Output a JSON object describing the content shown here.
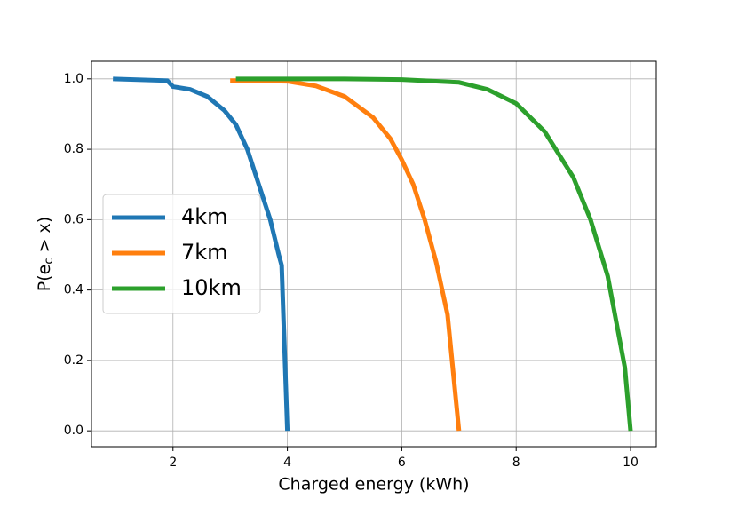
{
  "chart_data": {
    "type": "line",
    "xlabel": "Charged energy (kWh)",
    "ylabel_parts": [
      "P(e",
      "c",
      " > x)"
    ],
    "xlim": [
      0.575,
      10.45
    ],
    "ylim": [
      -0.045,
      1.05
    ],
    "xticks": [
      2,
      4,
      6,
      8,
      10
    ],
    "yticks": [
      {
        "value": 0,
        "label": "0.0"
      },
      {
        "value": 0.2,
        "label": "0.2"
      },
      {
        "value": 0.4,
        "label": "0.4"
      },
      {
        "value": 0.6,
        "label": "0.6"
      },
      {
        "value": 0.8,
        "label": "0.8"
      },
      {
        "value": 1,
        "label": "1.0"
      }
    ],
    "grid": true,
    "legend": "center left",
    "series": [
      {
        "name": "4km",
        "color": "#1f77b4",
        "x": [
          0.95,
          1.9,
          2.0,
          2.3,
          2.6,
          2.9,
          3.1,
          3.3,
          3.5,
          3.7,
          3.85,
          3.9,
          4.0
        ],
        "values": [
          1.0,
          0.995,
          0.978,
          0.97,
          0.95,
          0.91,
          0.87,
          0.8,
          0.7,
          0.6,
          0.5,
          0.47,
          0
        ]
      },
      {
        "name": "7km",
        "color": "#ff7f0e",
        "x": [
          3.0,
          3.2,
          4.0,
          4.5,
          5.0,
          5.5,
          5.8,
          6.0,
          6.2,
          6.4,
          6.6,
          6.8,
          7.0
        ],
        "values": [
          0.995,
          0.995,
          0.993,
          0.98,
          0.95,
          0.89,
          0.83,
          0.77,
          0.7,
          0.6,
          0.48,
          0.33,
          0
        ]
      },
      {
        "name": "10km",
        "color": "#2ca02c",
        "x": [
          3.1,
          5,
          6,
          7,
          7.5,
          8,
          8.5,
          9,
          9.3,
          9.6,
          9.9,
          10
        ],
        "values": [
          1.0,
          1.0,
          0.998,
          0.99,
          0.97,
          0.93,
          0.85,
          0.72,
          0.6,
          0.44,
          0.18,
          0
        ]
      }
    ]
  }
}
